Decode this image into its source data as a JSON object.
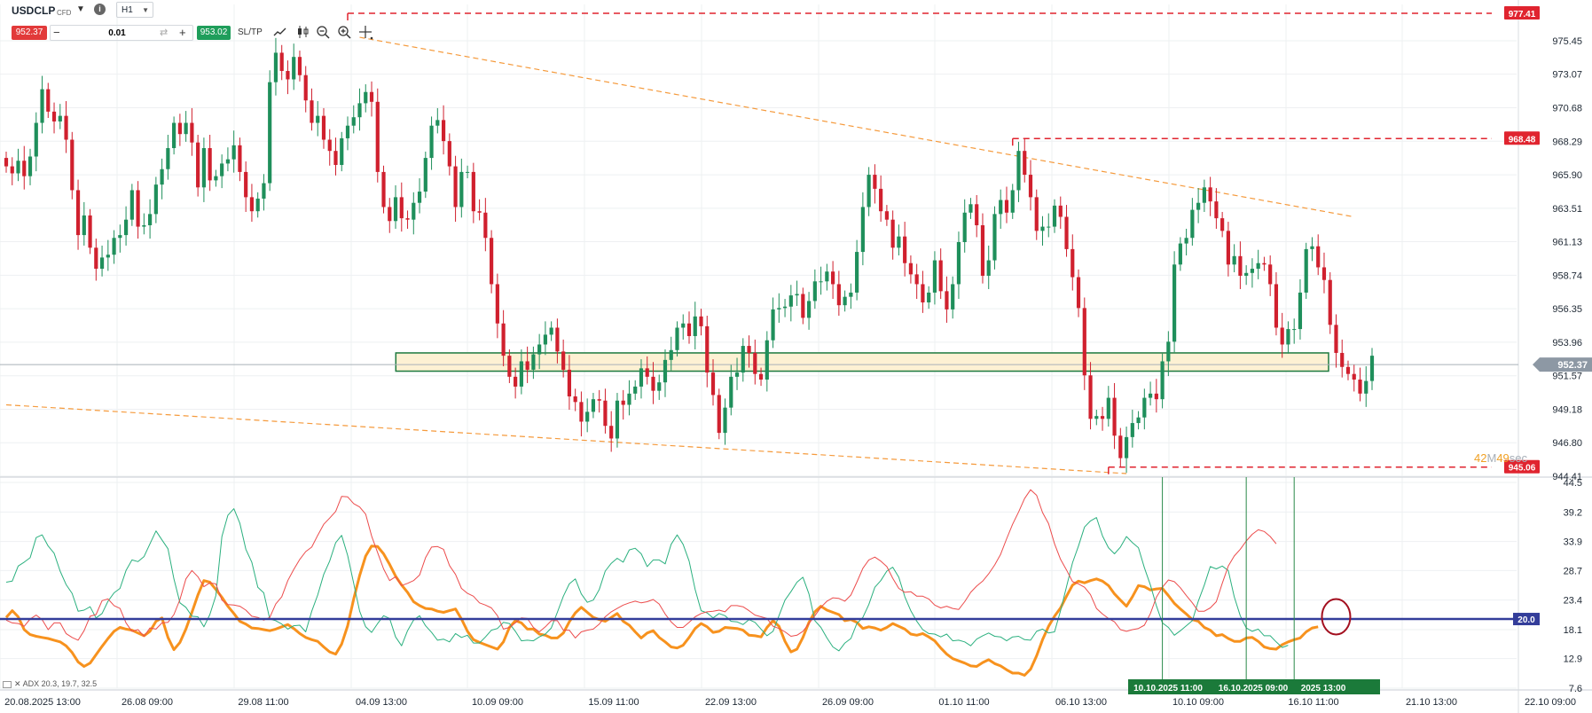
{
  "toolbar": {
    "symbol": "USDCLP",
    "instrument_type": "CFD",
    "symbol_dropdown": "▼",
    "info": "i",
    "timeframe": "H1",
    "timeframe_caret": "▼",
    "bid_price": "952.37",
    "quantity_minus": "−",
    "quantity": "0.01",
    "swap_icon": "⇄",
    "quantity_plus": "+",
    "ask_price": "953.02",
    "sltp_label": "SL/TP",
    "tools": [
      "line-chart-icon",
      "candlestick-icon",
      "zoom-out-icon",
      "zoom-in-icon",
      "crosshair-icon"
    ]
  },
  "colors": {
    "bull": "#1f8f5b",
    "bear": "#d0202e",
    "trendline": "#f59a3c",
    "level": "#e0242f",
    "zone_fill": "#fdf1d3",
    "zone_border": "#1d7a3f",
    "adx": "#f7921e",
    "di_plus": "#2bb07f",
    "di_minus": "#ec4c4c",
    "threshold": "#333d9a",
    "current_price": "#8d98a4"
  },
  "chart_data": [
    {
      "type": "candlestick",
      "symbol": "USDCLP",
      "timeframe": "H1",
      "ylim": [
        944.41,
        977.41
      ],
      "y_ticks": [
        "975.45",
        "973.07",
        "970.68",
        "968.29",
        "965.90",
        "963.51",
        "961.13",
        "958.74",
        "956.35",
        "953.96",
        "951.57",
        "949.18",
        "946.80",
        "944.41"
      ],
      "x_ticks": [
        "20.08.2025 13:00",
        "26.08 09:00",
        "29.08 11:00",
        "04.09 13:00",
        "10.09 09:00",
        "15.09 11:00",
        "22.09 13:00",
        "26.09 09:00",
        "01.10 11:00",
        "06.10 13:00",
        "10.10 09:00",
        "16.10 11:00",
        "21.10 13:00",
        "22.10 09:00"
      ],
      "current_price": "952.37",
      "price_levels": [
        "977.41",
        "968.48",
        "945.06"
      ],
      "countdown": {
        "minutes": "42",
        "minutes_unit": "M",
        "seconds": "49",
        "seconds_unit": "sec"
      },
      "support_zone": [
        951.9,
        953.2
      ],
      "closes": [
        966.5,
        966.0,
        966.9,
        965.8,
        967.2,
        969.6,
        972.0,
        970.4,
        969.7,
        970.1,
        968.4,
        964.8,
        961.6,
        963.0,
        960.7,
        959.2,
        960.0,
        960.2,
        961.4,
        961.6,
        962.7,
        964.8,
        962.2,
        962.3,
        963.1,
        965.2,
        966.3,
        967.8,
        969.6,
        968.8,
        969.6,
        968.2,
        965.0,
        967.8,
        965.5,
        965.8,
        966.7,
        967.0,
        968.0,
        966.1,
        964.3,
        963.3,
        964.2,
        965.3,
        972.5,
        974.6,
        973.3,
        972.7,
        974.3,
        973.0,
        971.2,
        969.6,
        970.1,
        968.4,
        967.6,
        966.6,
        968.5,
        969.4,
        970.0,
        971.0,
        971.8,
        971.1,
        966.1,
        963.6,
        962.6,
        964.3,
        962.8,
        962.7,
        963.9,
        964.7,
        967.1,
        969.4,
        969.8,
        968.3,
        966.5,
        963.6,
        966.1,
        966.1,
        963.3,
        963.2,
        961.4,
        958.1,
        955.3,
        953.0,
        951.5,
        950.8,
        952.6,
        952.0,
        953.1,
        953.8,
        954.5,
        955.0,
        953.3,
        952.0,
        950.1,
        949.7,
        948.3,
        949.0,
        949.9,
        949.8,
        948.0,
        947.1,
        949.8,
        949.5,
        950.3,
        950.8,
        952.1,
        951.5,
        950.5,
        951.1,
        952.7,
        953.4,
        955.0,
        955.3,
        954.4,
        955.8,
        955.1,
        951.8,
        950.2,
        947.5,
        949.3,
        951.5,
        951.8,
        953.7,
        953.2,
        951.7,
        951.3,
        954.1,
        956.3,
        956.4,
        956.5,
        957.3,
        957.4,
        955.7,
        956.9,
        958.3,
        958.3,
        959.0,
        958.1,
        956.6,
        957.2,
        957.5,
        960.4,
        963.6,
        965.9,
        964.9,
        963.3,
        962.7,
        960.7,
        961.5,
        959.6,
        958.8,
        958.1,
        956.8,
        957.5,
        959.8,
        957.6,
        956.3,
        958.1,
        961.1,
        963.2,
        963.8,
        962.3,
        958.7,
        959.8,
        963.1,
        964.1,
        963.2,
        964.8,
        967.6,
        965.9,
        964.3,
        961.9,
        962.2,
        962.2,
        963.7,
        962.9,
        960.6,
        958.6,
        956.4,
        951.6,
        948.5,
        948.7,
        948.5,
        950.0,
        947.3,
        945.7,
        947.2,
        948.2,
        948.6,
        950.0,
        950.3,
        949.9,
        952.6,
        954.0,
        959.5,
        961.0,
        961.4,
        963.4,
        963.9,
        965.0,
        964.0,
        962.8,
        961.9,
        959.5,
        960.1,
        958.7,
        958.9,
        959.2,
        959.6,
        959.5,
        958.1,
        955.0,
        953.8,
        954.9,
        954.9,
        957.5,
        960.6,
        960.8,
        959.3,
        958.4,
        955.2,
        953.2,
        952.2,
        951.7,
        951.3,
        950.3,
        951.2,
        953.0
      ],
      "trendlines": [
        {
          "from": {
            "bar": 59,
            "price": 975.7
          },
          "to": {
            "bar": 225,
            "price": 962.9
          }
        },
        {
          "from": {
            "bar": 0,
            "price": 949.5
          },
          "to": {
            "bar": 187,
            "price": 944.6
          }
        }
      ],
      "horizontal_levels": [
        {
          "price": 977.41,
          "from_bar": 57
        },
        {
          "price": 968.48,
          "from_bar": 168
        },
        {
          "price": 945.06,
          "from_bar": 184
        }
      ]
    },
    {
      "type": "line",
      "name": "ADX",
      "legend": "ADX 20.3, 19.7, 32.5",
      "close_label": "✕",
      "ylim": [
        7.6,
        44.5
      ],
      "y_ticks": [
        "44.5",
        "39.2",
        "33.9",
        "28.7",
        "23.4",
        "18.1",
        "12.9",
        "7.6"
      ],
      "threshold": "20.0",
      "series": [
        {
          "name": "ADX",
          "values": [
            20.3,
            21.5,
            20.4,
            18.1,
            17.2,
            16.9,
            16.7,
            16.5,
            16.2,
            15.9,
            15.2,
            14.0,
            12.3,
            11.5,
            12.1,
            13.6,
            15.1,
            16.5,
            17.8,
            18.5,
            18.2,
            18.0,
            17.5,
            17.0,
            17.8,
            19.6,
            20.2,
            16.7,
            14.5,
            15.8,
            18.2,
            21.2,
            24.3,
            26.9,
            26.6,
            25.3,
            23.9,
            22.3,
            21.0,
            19.6,
            19.1,
            18.4,
            18.3,
            18.1,
            17.9,
            18.2,
            18.6,
            19.0,
            18.3,
            17.4,
            16.7,
            16.3,
            16.0,
            15.0,
            14.1,
            13.7,
            15.5,
            18.8,
            23.6,
            27.8,
            31.3,
            33.1,
            33.0,
            31.7,
            29.8,
            27.7,
            26.1,
            24.8,
            23.1,
            22.4,
            21.9,
            21.8,
            21.4,
            21.2,
            21.5,
            21.8,
            20.0,
            17.8,
            16.3,
            15.8,
            15.4,
            15.0,
            14.6,
            15.9,
            18.5,
            19.7,
            19.3,
            18.2,
            18.2,
            17.3,
            17.1,
            16.6,
            16.6,
            17.5,
            19.5,
            21.1,
            22.1,
            21.2,
            20.3,
            19.9,
            19.6,
            20.3,
            21.0,
            19.6,
            18.9,
            17.7,
            16.6,
            17.5,
            17.9,
            16.7,
            15.9,
            15.0,
            14.8,
            15.3,
            16.7,
            18.3,
            19.2,
            18.6,
            17.6,
            17.8,
            18.5,
            18.4,
            18.3,
            18.0,
            17.1,
            17.0,
            16.8,
            18.5,
            19.7,
            18.7,
            16.0,
            14.1,
            14.6,
            16.7,
            19.4,
            21.3,
            22.3,
            21.6,
            21.2,
            20.8,
            19.7,
            19.9,
            19.4,
            18.3,
            18.6,
            18.4,
            18.0,
            18.5,
            19.2,
            18.7,
            18.2,
            17.3,
            17.1,
            17.4,
            16.8,
            16.1,
            14.8,
            13.7,
            12.9,
            12.5,
            12.1,
            11.6,
            11.5,
            12.2,
            12.7,
            12.0,
            11.6,
            10.9,
            10.3,
            10.3,
            9.9,
            11.0,
            13.4,
            16.3,
            18.7,
            20.5,
            22.0,
            24.1,
            26.1,
            26.8,
            26.5,
            26.9,
            27.2,
            26.8,
            26.0,
            24.5,
            23.4,
            22.3,
            24.0,
            26.0,
            25.8,
            25.2,
            25.4,
            25.5,
            24.2,
            22.8,
            21.8,
            20.9,
            19.9,
            19.6,
            18.5,
            18.0,
            17.0,
            17.2,
            16.5,
            16.0,
            16.0,
            16.6,
            16.7,
            16.0,
            15.0,
            14.7,
            14.6,
            15.4,
            15.9,
            16.3,
            16.6,
            17.7,
            18.4,
            18.6
          ]
        },
        {
          "name": "+DI",
          "values": [
            26.6,
            26.8,
            29.5,
            30.2,
            31.0,
            34.6,
            35.1,
            33.1,
            31.8,
            28.6,
            26.2,
            24.6,
            21.4,
            21.6,
            22.2,
            20.2,
            21.0,
            23.2,
            24.7,
            25.5,
            28.7,
            30.6,
            30.3,
            31.2,
            33.5,
            35.8,
            34.2,
            32.6,
            27.2,
            22.9,
            22.1,
            20.5,
            20.4,
            18.6,
            20.8,
            24.2,
            34.8,
            38.6,
            39.8,
            37.2,
            32.5,
            30.2,
            25.7,
            24.7,
            20.0,
            19.7,
            19.1,
            18.2,
            18.8,
            18.9,
            17.7,
            21.4,
            24.3,
            28.0,
            30.4,
            33.7,
            35.0,
            31.4,
            26.4,
            21.4,
            18.6,
            17.6,
            19.2,
            20.6,
            20.1,
            16.8,
            15.2,
            17.9,
            19.8,
            20.6,
            18.8,
            17.6,
            16.2,
            16.4,
            15.9,
            17.4,
            16.7,
            17.1,
            15.7,
            15.7,
            16.8,
            18.0,
            18.3,
            19.4,
            19.2,
            17.8,
            16.1,
            16.2,
            16.1,
            16.8,
            17.3,
            18.4,
            21.2,
            24.1,
            26.3,
            27.2,
            24.5,
            23.0,
            23.4,
            25.3,
            28.6,
            30.0,
            30.9,
            30.2,
            32.4,
            32.7,
            31.7,
            29.4,
            30.6,
            30.6,
            29.9,
            33.4,
            35.1,
            33.4,
            30.4,
            25.3,
            21.5,
            21.1,
            20.2,
            21.0,
            20.6,
            19.6,
            19.5,
            19.0,
            19.9,
            19.4,
            18.2,
            17.0,
            17.8,
            20.6,
            23.4,
            24.9,
            26.6,
            27.5,
            24.5,
            19.7,
            18.5,
            16.6,
            15.0,
            14.3,
            15.7,
            16.5,
            19.2,
            20.3,
            22.6,
            25.7,
            26.9,
            28.6,
            29.3,
            27.5,
            24.0,
            21.5,
            19.6,
            18.1,
            17.4,
            17.3,
            16.8,
            17.3,
            16.1,
            16.2,
            15.9,
            15.2,
            16.4,
            17.0,
            17.5,
            16.9,
            16.8,
            16.1,
            16.8,
            16.9,
            16.3,
            16.2,
            17.8,
            18.2,
            17.5,
            17.7,
            21.5,
            25.8,
            30.1,
            33.1,
            36.5,
            37.6,
            38.2,
            34.9,
            32.8,
            31.7,
            32.9,
            34.8,
            33.7,
            32.8,
            29.2,
            26.1,
            22.4,
            19.3,
            18.5,
            17.1,
            17.9,
            18.8,
            19.7,
            23.2,
            26.1,
            29.4,
            29.0,
            29.5,
            28.7,
            24.0,
            20.6,
            18.4,
            17.8,
            18.2,
            17.0,
            17.0,
            15.9,
            14.9,
            15.3
          ]
        },
        {
          "name": "-DI",
          "values": [
            19.8,
            19.3,
            19.2,
            18.7,
            20.0,
            20.7,
            19.9,
            18.1,
            19.3,
            19.3,
            17.4,
            16.7,
            16.2,
            17.9,
            20.5,
            20.8,
            23.3,
            23.6,
            22.4,
            21.9,
            19.3,
            17.8,
            18.1,
            16.9,
            18.4,
            18.2,
            19.3,
            19.4,
            20.8,
            23.5,
            27.2,
            28.7,
            27.6,
            25.8,
            26.5,
            26.3,
            23.4,
            22.6,
            22.5,
            22.3,
            21.6,
            20.5,
            20.3,
            19.8,
            20.3,
            22.7,
            24.0,
            26.9,
            28.9,
            30.7,
            32.1,
            32.9,
            35.0,
            37.0,
            38.1,
            39.3,
            42.0,
            41.9,
            40.7,
            40.1,
            38.8,
            34.9,
            31.9,
            29.0,
            26.9,
            27.6,
            26.0,
            26.4,
            26.9,
            27.9,
            31.0,
            32.9,
            33.0,
            32.5,
            29.6,
            28.0,
            25.5,
            24.6,
            24.1,
            22.9,
            22.5,
            22.0,
            20.6,
            18.2,
            18.5,
            19.3,
            20.2,
            20.1,
            18.5,
            17.7,
            18.6,
            19.7,
            19.7,
            18.0,
            18.0,
            16.6,
            17.7,
            18.0,
            18.2,
            19.1,
            20.4,
            21.3,
            21.9,
            22.5,
            22.9,
            23.2,
            22.9,
            23.1,
            23.5,
            22.7,
            20.9,
            19.5,
            18.5,
            18.5,
            19.4,
            20.4,
            21.0,
            21.3,
            21.4,
            21.6,
            21.3,
            22.4,
            22.4,
            22.2,
            21.5,
            20.7,
            20.4,
            20.1,
            18.7,
            18.3,
            17.7,
            16.9,
            17.1,
            17.8,
            19.2,
            20.6,
            22.1,
            23.2,
            23.8,
            23.7,
            23.2,
            24.3,
            26.6,
            29.1,
            30.6,
            31.1,
            30.4,
            29.4,
            27.3,
            25.5,
            24.8,
            24.9,
            24.1,
            24.1,
            23.6,
            22.5,
            22.0,
            22.3,
            21.9,
            21.7,
            23.1,
            24.8,
            25.9,
            26.8,
            28.1,
            29.7,
            31.6,
            34.4,
            37.0,
            39.2,
            41.6,
            43.2,
            42.2,
            39.1,
            37.1,
            33.5,
            30.7,
            28.8,
            26.7,
            26.3,
            25.7,
            24.4,
            21.9,
            20.9,
            20.1,
            19.5,
            18.1,
            17.8,
            18.1,
            18.3,
            18.9,
            21.0,
            23.9,
            25.7,
            27.0,
            26.7,
            25.6,
            24.2,
            22.9,
            21.4,
            21.4,
            22.0,
            23.1,
            26.4,
            29.5,
            31.3,
            32.5,
            34.0,
            35.2,
            36.0,
            35.7,
            34.8,
            33.5
          ]
        }
      ],
      "markers": [
        {
          "label": "10.10.2025 11:00",
          "bar": 193
        },
        {
          "label": "16.10.2025 09:00",
          "bar": 207
        },
        {
          "label": "2025 13:00",
          "bar": 215
        }
      ]
    }
  ]
}
